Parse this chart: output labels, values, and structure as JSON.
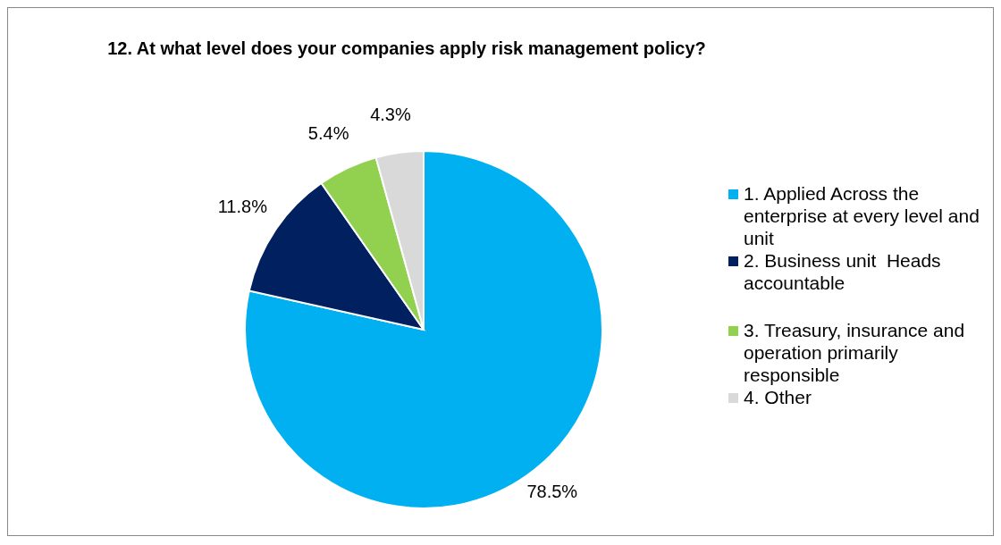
{
  "chart_data": {
    "type": "pie",
    "title": "12.  At what level does your companies apply risk management policy?",
    "categories": [
      "1. Applied Across the enterprise at every level and unit",
      "2. Business unit  Heads accountable",
      "3. Treasury, insurance and operation primarily responsible",
      "4. Other"
    ],
    "values": [
      78.5,
      11.8,
      5.4,
      4.3
    ],
    "colors": [
      "#00b0f0",
      "#002060",
      "#92d050",
      "#d9d9d9"
    ],
    "value_labels": [
      "78.5%",
      "11.8%",
      "5.4%",
      "4.3%"
    ],
    "legend": "right"
  }
}
